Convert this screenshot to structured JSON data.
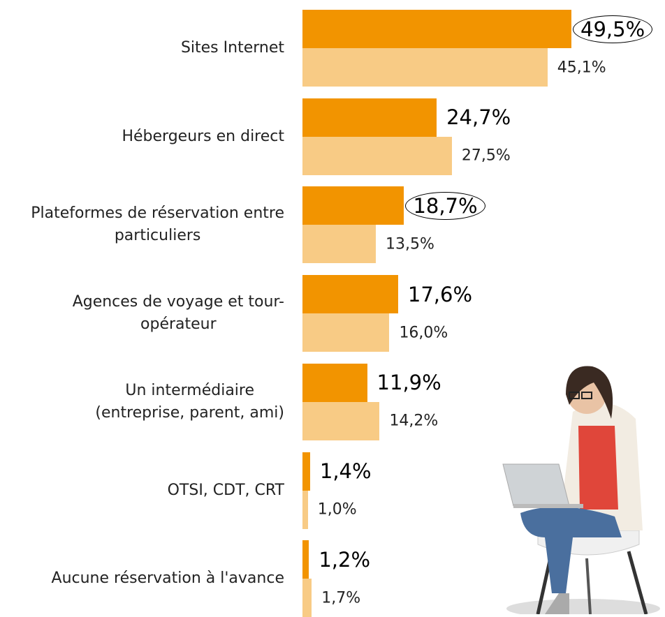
{
  "chart_data": {
    "type": "bar",
    "orientation": "horizontal",
    "categories": [
      "Sites Internet",
      "Hébergeurs en direct",
      "Plateformes de réservation entre\nparticuliers",
      "Agences de voyage et tour-\nopérateur",
      "Un intermédiaire\n(entreprise, parent, ami)",
      "OTSI, CDT, CRT",
      "Aucune réservation à l'avance"
    ],
    "series": [
      {
        "color": "#f29400",
        "values": [
          49.5,
          24.7,
          18.7,
          17.6,
          11.9,
          1.4,
          1.2
        ],
        "value_labels": [
          "49,5%",
          "24,7%",
          "18,7%",
          "17,6%",
          "11,9%",
          "1,4%",
          "1,2%"
        ],
        "circled": [
          0,
          2
        ]
      },
      {
        "color": "#f8cb85",
        "values": [
          45.1,
          27.5,
          13.5,
          16.0,
          14.2,
          1.0,
          1.7
        ],
        "value_labels": [
          "45,1%",
          "27,5%",
          "13,5%",
          "16,0%",
          "14,2%",
          "1,0%",
          "1,7%"
        ],
        "circled": []
      }
    ]
  }
}
